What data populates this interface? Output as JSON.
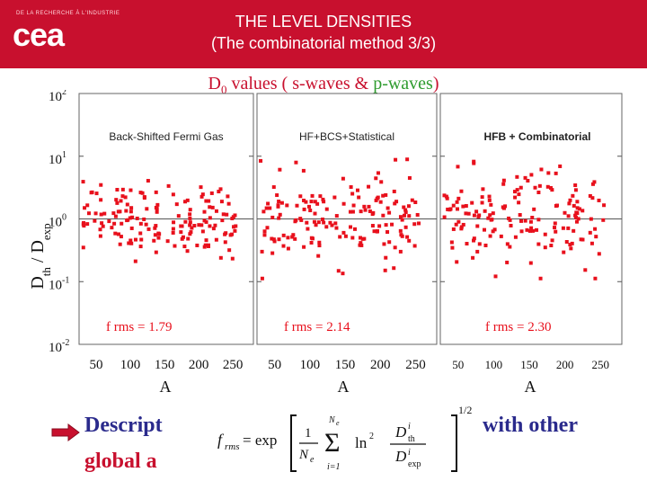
{
  "header": {
    "small_text": "DE LA RECHERCHE À L'INDUSTRIE",
    "logo": "cea",
    "title_line1": "THE LEVEL DENSITIES",
    "title_line2": "(The combinatorial method 3/3)"
  },
  "subtitle": {
    "prefix": "D",
    "sub": "0",
    "mid": " values  ( s-waves  & ",
    "green": "p-waves",
    "suffix": ")"
  },
  "y_axis_label": "D",
  "y_axis_sub1": "th",
  "y_axis_mid": " / D",
  "y_axis_sub2": "exp",
  "y_ticks": [
    {
      "base": "10",
      "exp": "2"
    },
    {
      "base": "10",
      "exp": "1"
    },
    {
      "base": "10",
      "exp": "0"
    },
    {
      "base": "10",
      "exp": "-1"
    },
    {
      "base": "10",
      "exp": "-2"
    }
  ],
  "bottom": {
    "line1_visible": "Descript",
    "line1_right": "with other",
    "line2_visible": "global a",
    "arrow_color": "#c8102e"
  },
  "formula": {
    "lhs": "f",
    "lhs_sub": "rms",
    "eq": "= exp",
    "one": "1",
    "N": "N",
    "N_sub": "e",
    "sum_top": "N",
    "sum_top_sub": "e",
    "sum_bottom": "i=1",
    "ln": "ln",
    "ln_exp": "2",
    "frac_top": "D",
    "frac_top_sup": "i",
    "frac_top_sub": "th",
    "frac_bot": "D",
    "frac_bot_sup": "i",
    "frac_bot_sub": "exp",
    "power": "1/2"
  },
  "colors": {
    "header": "#c8102e",
    "points": "#e8101c",
    "green": "#2e9b2e"
  },
  "chart_data": [
    {
      "type": "scatter",
      "title": "Back-Shifted Fermi Gas",
      "xlabel": "A",
      "ylabel": "Dth / Dexp",
      "xlim": [
        25,
        280
      ],
      "ylim": [
        0.01,
        100
      ],
      "y_scale": "log",
      "x_ticks": [
        "50",
        "100",
        "150",
        "200",
        "250"
      ],
      "annotation": "f rms = 1.79",
      "note": "approx 150 points scattered around y = 1, spanning roughly 0.1 to 10"
    },
    {
      "type": "scatter",
      "title": "HF+BCS+Statistical",
      "xlabel": "A",
      "ylabel": "Dth / Dexp",
      "xlim": [
        25,
        280
      ],
      "ylim": [
        0.01,
        100
      ],
      "y_scale": "log",
      "x_ticks": [
        "50",
        "100",
        "150",
        "200",
        "250"
      ],
      "annotation": "f rms = 2.14"
    },
    {
      "type": "scatter",
      "title": "HFB + Combinatorial",
      "xlabel": "A",
      "ylabel": "Dth / Dexp",
      "xlim": [
        25,
        280
      ],
      "ylim": [
        0.01,
        100
      ],
      "y_scale": "log",
      "x_ticks": [
        "50",
        "100",
        "150",
        "200",
        "250"
      ],
      "annotation": "f rms = 2.30"
    }
  ]
}
